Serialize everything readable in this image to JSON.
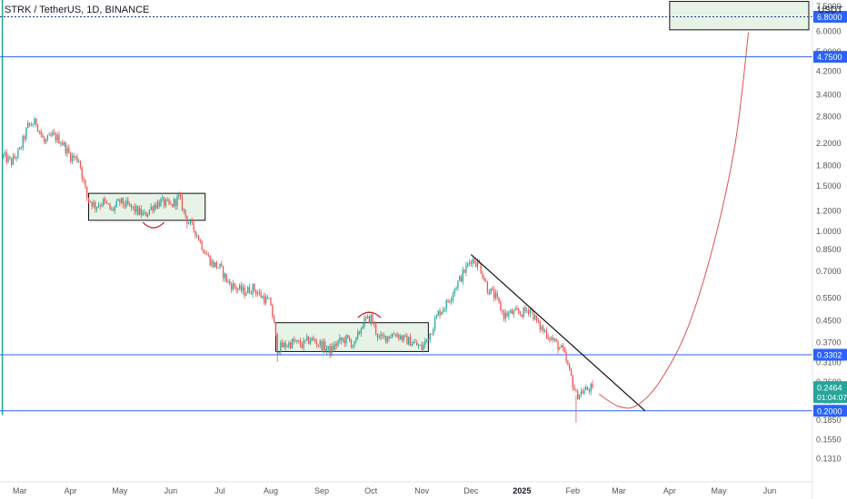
{
  "header": {
    "title": "STRK / TetherUS, 1D, BINANCE",
    "currency": "USDT"
  },
  "colors": {
    "up": "#26a69a",
    "down": "#ef5350",
    "level_line": "#2962ff",
    "level_label_bg": "#2962ff",
    "price_label_bg": "#26a69a",
    "target_line": "#1e3a8a",
    "projection": "#e05252",
    "box_fill": "#e6f3e6",
    "axis_text": "#555555"
  },
  "chart_data": {
    "type": "candlestick",
    "title": "STRK / TetherUS, 1D, BINANCE",
    "scale": "log",
    "ylim": [
      0.106,
      7.9
    ],
    "x_range": [
      "2024-02-18",
      "2025-06-27"
    ],
    "x_ticks": [
      {
        "label": "Mar",
        "date": "2024-03-01"
      },
      {
        "label": "Apr",
        "date": "2024-04-01"
      },
      {
        "label": "May",
        "date": "2024-05-01"
      },
      {
        "label": "Jun",
        "date": "2024-06-01"
      },
      {
        "label": "Jul",
        "date": "2024-07-01"
      },
      {
        "label": "Aug",
        "date": "2024-08-01"
      },
      {
        "label": "Sep",
        "date": "2024-09-01"
      },
      {
        "label": "Oct",
        "date": "2024-10-01"
      },
      {
        "label": "Nov",
        "date": "2024-11-01"
      },
      {
        "label": "Dec",
        "date": "2024-12-01"
      },
      {
        "label": "2025",
        "date": "2025-01-01"
      },
      {
        "label": "Feb",
        "date": "2025-02-01"
      },
      {
        "label": "Mar",
        "date": "2025-03-01"
      },
      {
        "label": "Apr",
        "date": "2025-04-01"
      },
      {
        "label": "May",
        "date": "2025-05-01"
      },
      {
        "label": "Jun",
        "date": "2025-06-01"
      }
    ],
    "y_ticks": [
      "7.5000",
      "6.0000",
      "5.0000",
      "4.2000",
      "3.4000",
      "2.8000",
      "2.2000",
      "1.8000",
      "1.5000",
      "1.2000",
      "1.0000",
      "0.8500",
      "0.7000",
      "0.5500",
      "0.4500",
      "0.3700",
      "0.3100",
      "0.2600",
      "0.2200",
      "0.1850",
      "0.1550",
      "0.1310"
    ],
    "price_path": [
      [
        "2024-02-20",
        1.95
      ],
      [
        "2024-02-25",
        1.85
      ],
      [
        "2024-03-01",
        2.05
      ],
      [
        "2024-03-06",
        2.55
      ],
      [
        "2024-03-11",
        2.65
      ],
      [
        "2024-03-16",
        2.2
      ],
      [
        "2024-03-21",
        2.35
      ],
      [
        "2024-03-26",
        2.25
      ],
      [
        "2024-04-01",
        1.95
      ],
      [
        "2024-04-06",
        1.9
      ],
      [
        "2024-04-11",
        1.35
      ],
      [
        "2024-04-16",
        1.25
      ],
      [
        "2024-04-21",
        1.3
      ],
      [
        "2024-04-26",
        1.2
      ],
      [
        "2024-05-01",
        1.3
      ],
      [
        "2024-05-06",
        1.25
      ],
      [
        "2024-05-11",
        1.2
      ],
      [
        "2024-05-16",
        1.15
      ],
      [
        "2024-05-21",
        1.25
      ],
      [
        "2024-05-26",
        1.3
      ],
      [
        "2024-06-01",
        1.25
      ],
      [
        "2024-06-06",
        1.35
      ],
      [
        "2024-06-11",
        1.1
      ],
      [
        "2024-06-16",
        1.0
      ],
      [
        "2024-06-21",
        0.85
      ],
      [
        "2024-06-26",
        0.75
      ],
      [
        "2024-07-01",
        0.72
      ],
      [
        "2024-07-06",
        0.63
      ],
      [
        "2024-07-11",
        0.6
      ],
      [
        "2024-07-16",
        0.58
      ],
      [
        "2024-07-21",
        0.6
      ],
      [
        "2024-07-26",
        0.56
      ],
      [
        "2024-08-01",
        0.52
      ],
      [
        "2024-08-05",
        0.35
      ],
      [
        "2024-08-10",
        0.36
      ],
      [
        "2024-08-15",
        0.37
      ],
      [
        "2024-08-20",
        0.36
      ],
      [
        "2024-08-25",
        0.38
      ],
      [
        "2024-09-01",
        0.36
      ],
      [
        "2024-09-06",
        0.34
      ],
      [
        "2024-09-11",
        0.37
      ],
      [
        "2024-09-16",
        0.38
      ],
      [
        "2024-09-21",
        0.36
      ],
      [
        "2024-09-26",
        0.44
      ],
      [
        "2024-10-01",
        0.46
      ],
      [
        "2024-10-06",
        0.38
      ],
      [
        "2024-10-11",
        0.39
      ],
      [
        "2024-10-16",
        0.4
      ],
      [
        "2024-10-21",
        0.38
      ],
      [
        "2024-10-26",
        0.37
      ],
      [
        "2024-11-01",
        0.35
      ],
      [
        "2024-11-06",
        0.4
      ],
      [
        "2024-11-11",
        0.48
      ],
      [
        "2024-11-16",
        0.52
      ],
      [
        "2024-11-21",
        0.6
      ],
      [
        "2024-11-26",
        0.68
      ],
      [
        "2024-12-01",
        0.78
      ],
      [
        "2024-12-06",
        0.74
      ],
      [
        "2024-12-11",
        0.6
      ],
      [
        "2024-12-16",
        0.55
      ],
      [
        "2024-12-21",
        0.47
      ],
      [
        "2024-12-26",
        0.48
      ],
      [
        "2025-01-01",
        0.48
      ],
      [
        "2025-01-06",
        0.5
      ],
      [
        "2025-01-11",
        0.43
      ],
      [
        "2025-01-16",
        0.4
      ],
      [
        "2025-01-21",
        0.37
      ],
      [
        "2025-01-26",
        0.34
      ],
      [
        "2025-01-31",
        0.27
      ],
      [
        "2025-02-03",
        0.23
      ],
      [
        "2025-02-08",
        0.24
      ],
      [
        "2025-02-13",
        0.2464
      ]
    ],
    "levels": [
      {
        "price": 6.8,
        "label": "6.8000",
        "style": "dotted"
      },
      {
        "price": 4.75,
        "label": "4.7500",
        "style": "solid"
      },
      {
        "price": 0.3302,
        "label": "0.3302",
        "style": "solid"
      },
      {
        "price": 0.2,
        "label": "0.2000",
        "style": "solid"
      }
    ],
    "last_price": {
      "price": 0.2464,
      "label": "0.2464",
      "countdown": "01:04:07"
    },
    "boxes": [
      {
        "x0": "2024-04-12",
        "x1": "2024-06-22",
        "y0": 1.1,
        "y1": 1.4
      },
      {
        "x0": "2024-08-04",
        "x1": "2024-11-05",
        "y0": 0.34,
        "y1": 0.44
      },
      {
        "x0": "2025-04-01",
        "x1": "2025-06-27",
        "y0": 6.05,
        "y1": 7.8
      }
    ],
    "arcs": [
      {
        "x0": "2024-05-15",
        "x1": "2024-05-28",
        "y": 1.08,
        "direction": "down"
      },
      {
        "x0": "2024-09-23",
        "x1": "2024-10-07",
        "y": 0.46,
        "direction": "up"
      }
    ],
    "trendline": {
      "from": [
        "2024-12-01",
        0.81
      ],
      "to": [
        "2025-03-17",
        0.2
      ]
    },
    "projection": [
      [
        "2025-02-17",
        0.232
      ],
      [
        "2025-03-01",
        0.208
      ],
      [
        "2025-03-12",
        0.21
      ],
      [
        "2025-03-26",
        0.26
      ],
      [
        "2025-04-12",
        0.42
      ],
      [
        "2025-04-28",
        0.9
      ],
      [
        "2025-05-11",
        2.2
      ],
      [
        "2025-05-19",
        5.9
      ]
    ]
  }
}
